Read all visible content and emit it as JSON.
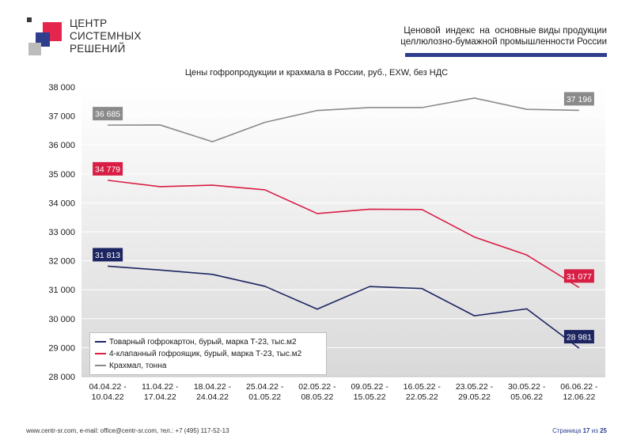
{
  "header": {
    "logo_lines": [
      "ЦЕНТР",
      "СИСТЕМНЫХ",
      "РЕШЕНИЙ"
    ],
    "right_lines": [
      "Ценовой  индекс  на  основные виды продукции",
      "целлюлозно-бумажной промышленности России"
    ],
    "logo_colors": {
      "red": "#e4254d",
      "navy": "#2e3e8c",
      "gray": "#bcbcbc",
      "dark": "#3a3a3a",
      "accent_bar": "#2e3e8c"
    }
  },
  "chart_data": {
    "type": "line",
    "title": "Цены гофропродукции и крахмала в России, руб., EXW, без НДС",
    "categories": [
      [
        "04.04.22 -",
        "10.04.22"
      ],
      [
        "11.04.22 -",
        "17.04.22"
      ],
      [
        "18.04.22 -",
        "24.04.22"
      ],
      [
        "25.04.22 -",
        "01.05.22"
      ],
      [
        "02.05.22 -",
        "08.05.22"
      ],
      [
        "09.05.22 -",
        "15.05.22"
      ],
      [
        "16.05.22 -",
        "22.05.22"
      ],
      [
        "23.05.22 -",
        "29.05.22"
      ],
      [
        "30.05.22 -",
        "05.06.22"
      ],
      [
        "06.06.22 -",
        "12.06.22"
      ]
    ],
    "ylim": [
      28000,
      38000
    ],
    "yticks": [
      28000,
      29000,
      30000,
      31000,
      32000,
      33000,
      34000,
      35000,
      36000,
      37000,
      38000
    ],
    "ytick_labels": [
      "28 000",
      "29 000",
      "30 000",
      "31 000",
      "32 000",
      "33 000",
      "34 000",
      "35 000",
      "36 000",
      "37 000",
      "38 000"
    ],
    "legend_position": "bottom-left",
    "series": [
      {
        "name": "Товарный гофрокартон, бурый, марка Т-23, тыс.м2",
        "color": "#1c2461",
        "values": [
          31813,
          31680,
          31530,
          31120,
          30330,
          31110,
          31040,
          30100,
          30340,
          28981
        ],
        "first_label": "31 813",
        "last_label": "28 981"
      },
      {
        "name": "4-клапанный гофроящик, бурый, марка Т-23, тыс.м2",
        "color": "#d81e45",
        "values": [
          34779,
          34560,
          34610,
          34450,
          33630,
          33780,
          33770,
          32820,
          32200,
          31077
        ],
        "first_label": "34 779",
        "last_label": "31 077"
      },
      {
        "name": "Крахмал, тонна",
        "color": "#8a8a8a",
        "values": [
          36685,
          36690,
          36110,
          36780,
          37190,
          37290,
          37290,
          37620,
          37230,
          37196
        ],
        "first_label": "36 685",
        "last_label": "37 196"
      }
    ]
  },
  "footer": {
    "contacts": "www.centr-sr.com, e-mail: office@centr-sr.com, тел.: +7 (495) 117-52-13",
    "page_prefix": "Страница",
    "page_num": "17",
    "page_sep": "из",
    "page_total": "25"
  }
}
